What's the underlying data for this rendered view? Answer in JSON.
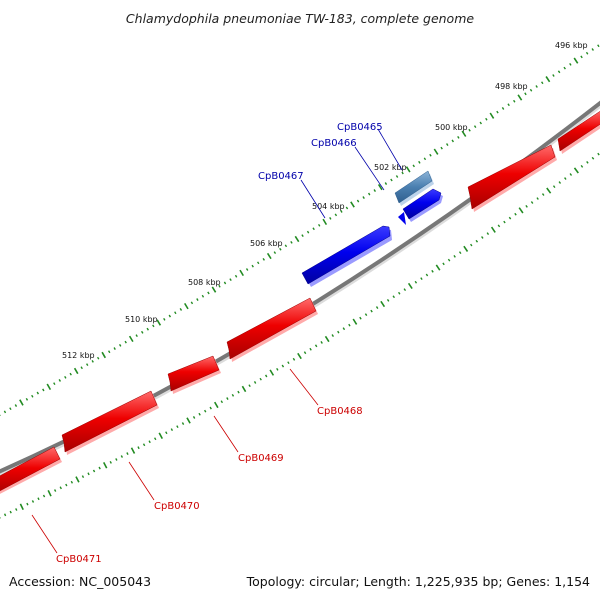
{
  "title": "Chlamydophila pneumoniae TW-183, complete genome",
  "footer": {
    "accession": "Accession: NC_005043",
    "info": "Topology: circular; Length: 1,225,935 bp; Genes: 1,154"
  },
  "colors": {
    "forward_gene": "#0000ee",
    "forward_gene_selected": "#4a7fb0",
    "reverse_gene": "#ee0000",
    "backbone": "#777777",
    "ticks": "#228b22",
    "forward_label": "#0000aa",
    "reverse_label": "#cc0000"
  },
  "kbp_ticks": [
    "496 kbp",
    "498 kbp",
    "500 kbp",
    "502 kbp",
    "504 kbp",
    "506 kbp",
    "508 kbp",
    "510 kbp",
    "512 kbp"
  ],
  "genes_forward": [
    "CpB0465",
    "CpB0466",
    "CpB0467"
  ],
  "genes_reverse": [
    "CpB0468",
    "CpB0469",
    "CpB0470",
    "CpB0471"
  ]
}
